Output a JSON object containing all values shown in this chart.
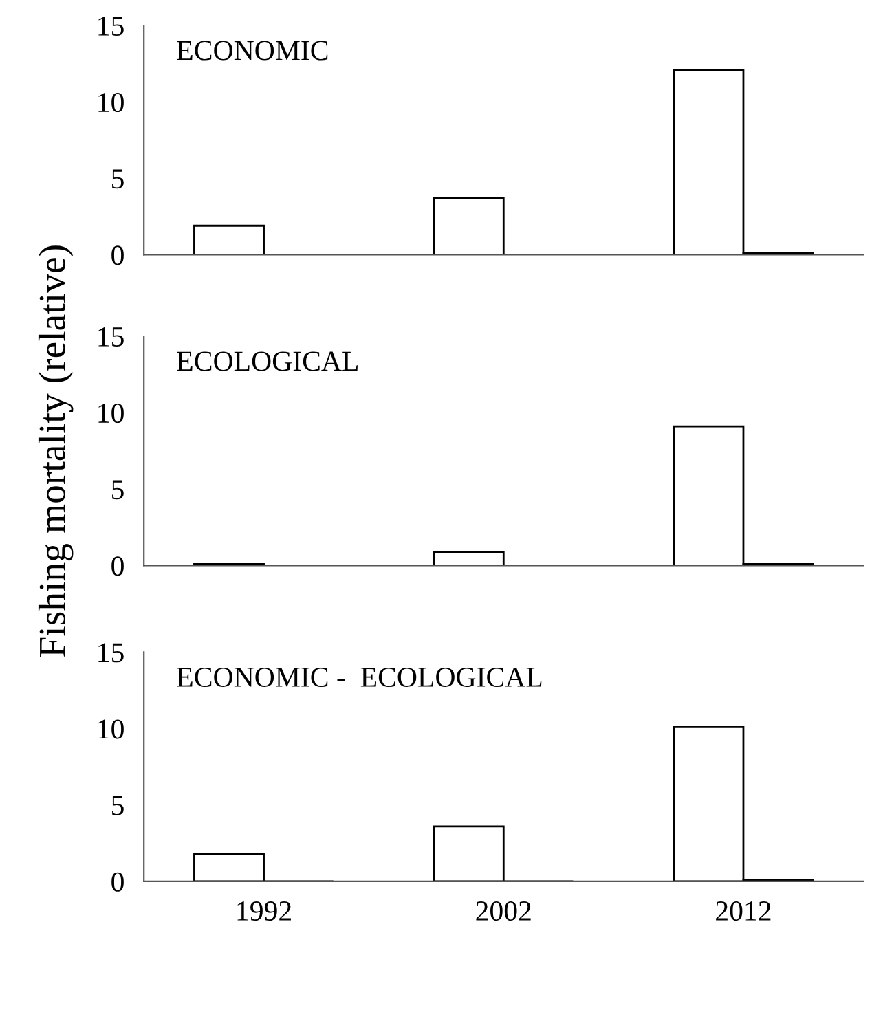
{
  "chart_data": [
    {
      "type": "bar",
      "categories": [
        "1992",
        "2002",
        "2012"
      ],
      "annotations": [
        "ECONOMIC"
      ],
      "ylim": [
        0,
        15
      ],
      "yticks": [
        0,
        5,
        10,
        15
      ],
      "tick_labels": "y",
      "grid": false,
      "legend": false,
      "series": [
        {
          "color": "#ffffff",
          "values": [
            1.9,
            3.7,
            12.1
          ]
        },
        {
          "color": "#000000",
          "values": [
            0,
            0,
            0.1
          ]
        }
      ]
    },
    {
      "type": "bar",
      "categories": [
        "1992",
        "2002",
        "2012"
      ],
      "annotations": [
        "ECOLOGICAL"
      ],
      "ylabel": "Fishing mortality (relative)",
      "ylim": [
        0,
        15
      ],
      "yticks": [
        0,
        5,
        10,
        15
      ],
      "tick_labels": "y",
      "grid": false,
      "legend": false,
      "series": [
        {
          "color": "#ffffff",
          "values": [
            0.1,
            0.9,
            9.1
          ]
        },
        {
          "color": "#000000",
          "values": [
            0,
            0,
            0.1
          ]
        }
      ]
    },
    {
      "type": "bar",
      "categories": [
        "1992",
        "2002",
        "2012"
      ],
      "annotations": [
        "ECONOMIC -  ECOLOGICAL"
      ],
      "ylim": [
        0,
        15
      ],
      "yticks": [
        0,
        5,
        10,
        15
      ],
      "grid": false,
      "legend": false,
      "series": [
        {
          "color": "#ffffff",
          "values": [
            1.8,
            3.6,
            10.1
          ]
        },
        {
          "color": "#000000",
          "values": [
            0,
            0,
            0.1
          ]
        }
      ]
    }
  ]
}
